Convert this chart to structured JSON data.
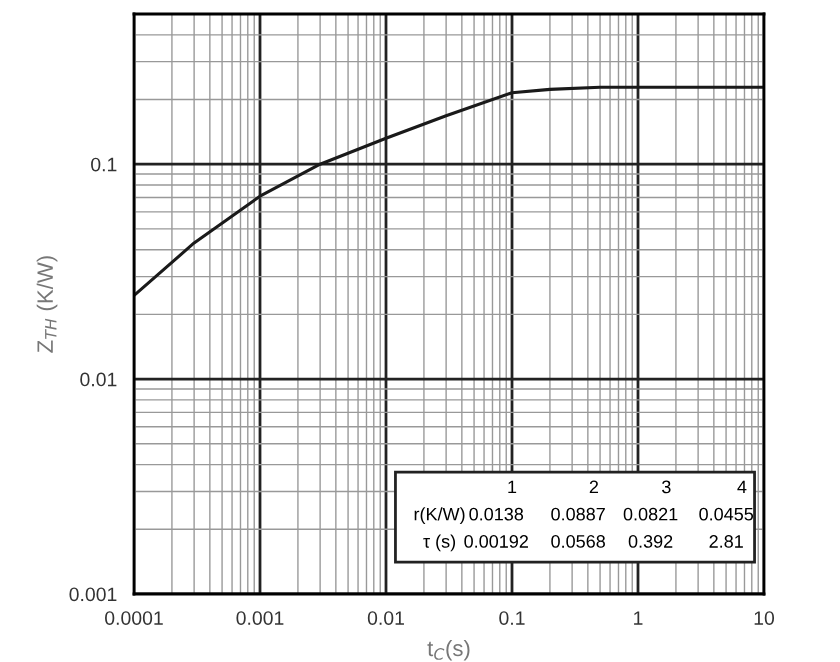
{
  "chart_data": {
    "type": "line",
    "xlabel": "t$_{C}$(s)",
    "ylabel": "Z$_{TH}$ (K/W)",
    "log": "xy",
    "x": [
      0.0001,
      0.0003,
      0.001,
      0.003,
      0.01,
      0.03,
      0.1,
      0.2,
      0.5,
      1,
      10
    ],
    "series": [
      {
        "color": "#1a1a1a",
        "values": [
          0.0245,
          0.043,
          0.071,
          0.1,
          0.132,
          0.168,
          0.215,
          0.223,
          0.228,
          0.228,
          0.228
        ]
      }
    ],
    "xlim": [
      0.0001,
      10
    ],
    "ylim": [
      0.001,
      0.5
    ],
    "xticks": [
      0.0001,
      0.001,
      0.01,
      0.1,
      1,
      10
    ],
    "yticks": [
      0.001,
      0.01,
      0.1
    ],
    "grid": true,
    "marker": "none",
    "line_style": "solid",
    "annotations": [
      "1",
      "2",
      "3",
      "4",
      "r(K/W)",
      "0.0138",
      "0.0887",
      "0.0821",
      "0.0455",
      "τ (s)",
      "0.00192",
      "0.0568",
      "0.392",
      "2.81"
    ]
  }
}
